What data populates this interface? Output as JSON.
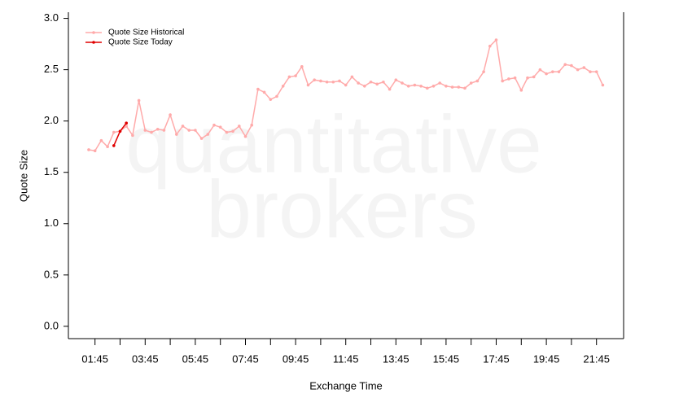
{
  "chart_data": {
    "type": "line",
    "watermark": [
      "quantitative",
      "brokers"
    ],
    "xlabel": "Exchange Time",
    "ylabel": "Quote Size",
    "x": [
      "01:30",
      "01:45",
      "02:00",
      "02:15",
      "02:30",
      "02:45",
      "03:00",
      "03:15",
      "03:30",
      "03:45",
      "04:00",
      "04:15",
      "04:30",
      "04:45",
      "05:00",
      "05:15",
      "05:30",
      "05:45",
      "06:00",
      "06:15",
      "06:30",
      "06:45",
      "07:00",
      "07:15",
      "07:30",
      "07:45",
      "08:00",
      "08:15",
      "08:30",
      "08:45",
      "09:00",
      "09:15",
      "09:30",
      "09:45",
      "10:00",
      "10:15",
      "10:30",
      "10:45",
      "11:00",
      "11:15",
      "11:30",
      "11:45",
      "12:00",
      "12:15",
      "12:30",
      "12:45",
      "13:00",
      "13:15",
      "13:30",
      "13:45",
      "14:00",
      "14:15",
      "14:30",
      "14:45",
      "15:00",
      "15:15",
      "15:30",
      "15:45",
      "16:00",
      "16:15",
      "16:30",
      "16:45",
      "17:00",
      "17:15",
      "17:30",
      "17:45",
      "18:00",
      "18:15",
      "18:30",
      "18:45",
      "19:00",
      "19:15",
      "19:30",
      "19:45",
      "20:00",
      "20:15",
      "20:30",
      "20:45",
      "21:00",
      "21:15",
      "21:30",
      "21:45",
      "22:00"
    ],
    "xticks": [
      "01:45",
      "03:45",
      "05:45",
      "07:45",
      "09:45",
      "11:45",
      "13:45",
      "15:45",
      "17:45",
      "19:45",
      "21:45"
    ],
    "ylim": [
      -0.12,
      3.06
    ],
    "yticks": [
      {
        "value": 0,
        "label": "0.0"
      },
      {
        "value": 0.5,
        "label": "0.5"
      },
      {
        "value": 1,
        "label": "1.0"
      },
      {
        "value": 1.5,
        "label": "1.5"
      },
      {
        "value": 2,
        "label": "2.0"
      },
      {
        "value": 2.5,
        "label": "2.5"
      },
      {
        "value": 3,
        "label": "3.0"
      }
    ],
    "legend": "upper left",
    "series": [
      {
        "name": "Quote Size Historical",
        "color": "#ffaaaa",
        "values": [
          1.72,
          1.71,
          1.81,
          1.75,
          1.89,
          1.9,
          1.95,
          1.86,
          2.2,
          1.91,
          1.89,
          1.92,
          1.91,
          2.06,
          1.87,
          1.95,
          1.91,
          1.91,
          1.83,
          1.87,
          1.96,
          1.94,
          1.89,
          1.9,
          1.95,
          1.85,
          1.96,
          2.31,
          2.28,
          2.21,
          2.24,
          2.34,
          2.43,
          2.44,
          2.53,
          2.35,
          2.4,
          2.39,
          2.38,
          2.38,
          2.39,
          2.35,
          2.43,
          2.37,
          2.34,
          2.38,
          2.36,
          2.38,
          2.31,
          2.4,
          2.37,
          2.34,
          2.35,
          2.34,
          2.32,
          2.34,
          2.37,
          2.34,
          2.33,
          2.33,
          2.32,
          2.37,
          2.39,
          2.48,
          2.73,
          2.79,
          2.39,
          2.41,
          2.42,
          2.3,
          2.42,
          2.43,
          2.5,
          2.46,
          2.48,
          2.48,
          2.55,
          2.54,
          2.5,
          2.52,
          2.48,
          2.48,
          2.35
        ]
      },
      {
        "name": "Quote Size Today",
        "color": "#e00000",
        "values": [
          null,
          null,
          null,
          null,
          1.76,
          1.9,
          1.98,
          null,
          null,
          null,
          null,
          null,
          null,
          null,
          null,
          null,
          null,
          null,
          null,
          null,
          null,
          null,
          null,
          null,
          null,
          null,
          null,
          null,
          null,
          null,
          null,
          null,
          null,
          null,
          null,
          null,
          null,
          null,
          null,
          null,
          null,
          null,
          null,
          null,
          null,
          null,
          null,
          null,
          null,
          null,
          null,
          null,
          null,
          null,
          null,
          null,
          null,
          null,
          null,
          null,
          null,
          null,
          null,
          null,
          null,
          null,
          null,
          null,
          null,
          null,
          null,
          null,
          null,
          null,
          null,
          null,
          null,
          null,
          null,
          null,
          null,
          null,
          null
        ]
      }
    ]
  }
}
